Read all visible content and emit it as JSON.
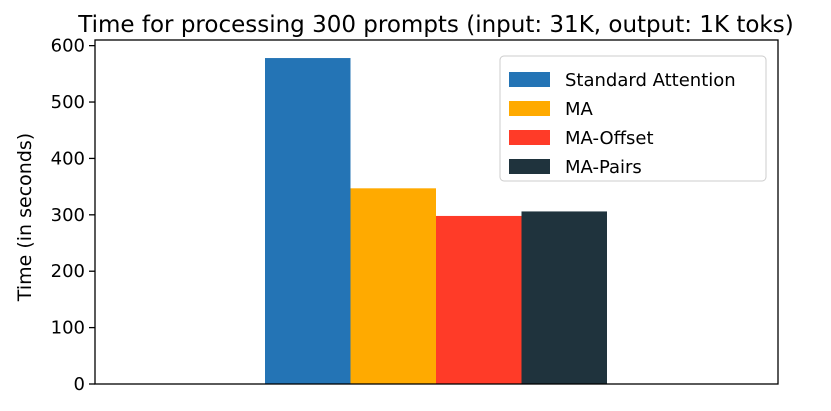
{
  "chart_data": {
    "type": "bar",
    "title": "Time for processing 300 prompts (input: 31K, output: 1K toks)",
    "xlabel": "",
    "ylabel": "Time (in seconds)",
    "ylim": [
      0,
      610
    ],
    "yticks": [
      0,
      100,
      200,
      300,
      400,
      500,
      600
    ],
    "categories": [
      ""
    ],
    "series": [
      {
        "name": "Standard Attention",
        "values": [
          578
        ],
        "color": "#2474b5"
      },
      {
        "name": "MA",
        "values": [
          347
        ],
        "color": "#ffaa00"
      },
      {
        "name": "MA-Offset",
        "values": [
          298
        ],
        "color": "#ff3b28"
      },
      {
        "name": "MA-Pairs",
        "values": [
          306
        ],
        "color": "#1f333d"
      }
    ],
    "legend_position": "top-right",
    "grid": false
  }
}
